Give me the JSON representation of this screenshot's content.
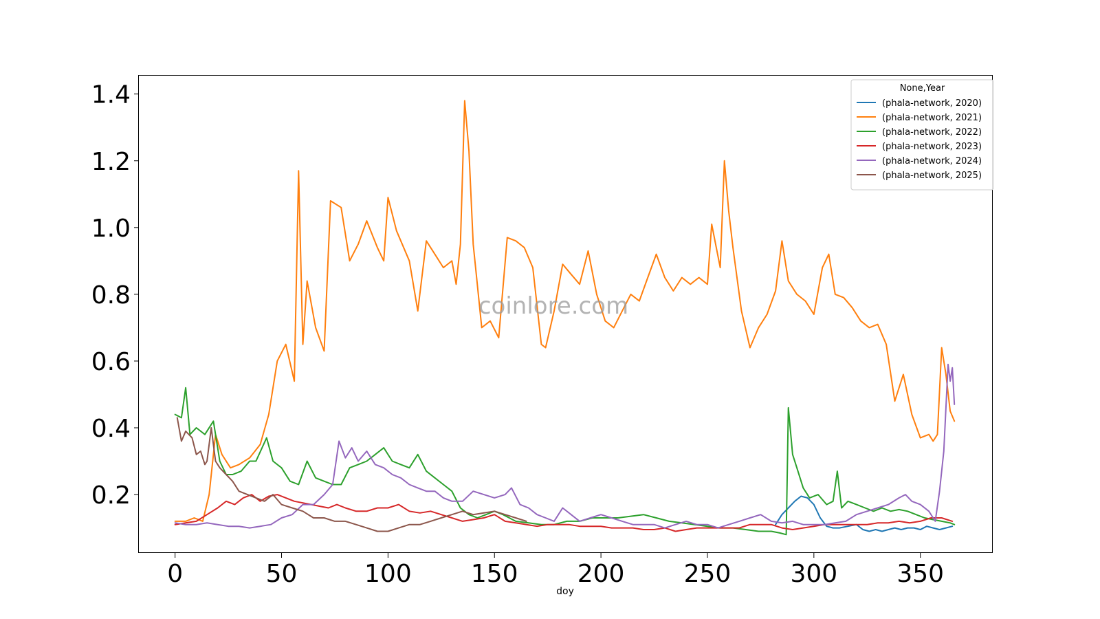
{
  "watermark": "coinlore.com",
  "chart_data": {
    "type": "line",
    "title": "",
    "xlabel": "doy",
    "ylabel": "",
    "xlim": [
      -17,
      384
    ],
    "ylim": [
      0.025,
      1.455
    ],
    "xticks": [
      0,
      50,
      100,
      150,
      200,
      250,
      300,
      350
    ],
    "yticks": [
      0.2,
      0.4,
      0.6,
      0.8,
      1.0,
      1.2,
      1.4
    ],
    "ytick_labels": [
      "0.2",
      "0.4",
      "0.6",
      "0.8",
      "1.0",
      "1.2",
      "1.4"
    ],
    "grid": false,
    "legend": {
      "title": "None,Year",
      "placement": "top-right"
    },
    "series": [
      {
        "name": "(phala-network, 2020)",
        "color": "#1f77b4",
        "x": [
          282,
          285,
          288,
          291,
          294,
          297,
          300,
          303,
          306,
          309,
          312,
          316,
          320,
          323,
          326,
          329,
          332,
          335,
          338,
          341,
          344,
          347,
          350,
          353,
          356,
          359,
          362,
          365
        ],
        "y": [
          0.11,
          0.14,
          0.16,
          0.18,
          0.195,
          0.19,
          0.17,
          0.13,
          0.105,
          0.1,
          0.1,
          0.105,
          0.11,
          0.095,
          0.09,
          0.095,
          0.09,
          0.095,
          0.1,
          0.095,
          0.1,
          0.1,
          0.095,
          0.105,
          0.1,
          0.095,
          0.1,
          0.105
        ]
      },
      {
        "name": "(phala-network, 2021)",
        "color": "#ff7f0e",
        "x": [
          0,
          5,
          9,
          13,
          16,
          19,
          22,
          26,
          30,
          35,
          40,
          44,
          48,
          52,
          56,
          58,
          60,
          62,
          66,
          70,
          73,
          78,
          82,
          86,
          90,
          95,
          98,
          100,
          104,
          110,
          114,
          118,
          122,
          126,
          130,
          132,
          134,
          136,
          138,
          140,
          144,
          148,
          152,
          156,
          160,
          164,
          168,
          172,
          174,
          178,
          182,
          186,
          190,
          194,
          198,
          202,
          206,
          210,
          214,
          218,
          222,
          226,
          230,
          234,
          238,
          242,
          246,
          250,
          252,
          256,
          258,
          260,
          262,
          266,
          270,
          274,
          278,
          282,
          285,
          288,
          292,
          296,
          300,
          304,
          307,
          310,
          314,
          318,
          322,
          326,
          330,
          334,
          338,
          342,
          346,
          350,
          354,
          356,
          358,
          360,
          362,
          364,
          366
        ],
        "y": [
          0.12,
          0.12,
          0.13,
          0.12,
          0.2,
          0.38,
          0.32,
          0.28,
          0.29,
          0.31,
          0.35,
          0.44,
          0.6,
          0.65,
          0.54,
          1.17,
          0.65,
          0.84,
          0.7,
          0.63,
          1.08,
          1.06,
          0.9,
          0.95,
          1.02,
          0.94,
          0.9,
          1.09,
          0.99,
          0.9,
          0.75,
          0.96,
          0.92,
          0.88,
          0.9,
          0.83,
          0.95,
          1.38,
          1.23,
          0.95,
          0.7,
          0.72,
          0.67,
          0.97,
          0.96,
          0.94,
          0.88,
          0.65,
          0.64,
          0.75,
          0.89,
          0.86,
          0.83,
          0.93,
          0.8,
          0.72,
          0.7,
          0.75,
          0.8,
          0.78,
          0.85,
          0.92,
          0.85,
          0.81,
          0.85,
          0.83,
          0.85,
          0.83,
          1.01,
          0.88,
          1.2,
          1.05,
          0.94,
          0.75,
          0.64,
          0.7,
          0.74,
          0.81,
          0.96,
          0.84,
          0.8,
          0.78,
          0.74,
          0.88,
          0.92,
          0.8,
          0.79,
          0.76,
          0.72,
          0.7,
          0.71,
          0.65,
          0.48,
          0.56,
          0.44,
          0.37,
          0.38,
          0.36,
          0.38,
          0.64,
          0.56,
          0.45,
          0.42
        ]
      },
      {
        "name": "(phala-network, 2022)",
        "color": "#2ca02c",
        "x": [
          0,
          3,
          5,
          7,
          10,
          14,
          18,
          21,
          24,
          27,
          31,
          35,
          38,
          43,
          46,
          50,
          54,
          58,
          62,
          66,
          70,
          74,
          78,
          82,
          86,
          90,
          94,
          98,
          102,
          106,
          110,
          114,
          118,
          122,
          126,
          130,
          134,
          138,
          142,
          146,
          150,
          154,
          160,
          166,
          172,
          178,
          184,
          190,
          196,
          202,
          208,
          214,
          220,
          226,
          232,
          238,
          244,
          250,
          256,
          262,
          268,
          274,
          280,
          284,
          287,
          288,
          290,
          292,
          295,
          298,
          302,
          306,
          309,
          311,
          313,
          316,
          320,
          324,
          328,
          332,
          336,
          340,
          344,
          348,
          352,
          356,
          360,
          364,
          366
        ],
        "y": [
          0.44,
          0.43,
          0.52,
          0.38,
          0.4,
          0.38,
          0.42,
          0.3,
          0.26,
          0.26,
          0.27,
          0.3,
          0.3,
          0.37,
          0.3,
          0.28,
          0.24,
          0.23,
          0.3,
          0.25,
          0.24,
          0.23,
          0.23,
          0.28,
          0.29,
          0.3,
          0.32,
          0.34,
          0.3,
          0.29,
          0.28,
          0.32,
          0.27,
          0.25,
          0.23,
          0.21,
          0.16,
          0.14,
          0.13,
          0.14,
          0.15,
          0.14,
          0.12,
          0.115,
          0.11,
          0.11,
          0.12,
          0.12,
          0.13,
          0.13,
          0.13,
          0.135,
          0.14,
          0.13,
          0.12,
          0.115,
          0.11,
          0.105,
          0.1,
          0.1,
          0.095,
          0.09,
          0.09,
          0.085,
          0.08,
          0.46,
          0.32,
          0.28,
          0.22,
          0.19,
          0.2,
          0.17,
          0.18,
          0.27,
          0.16,
          0.18,
          0.17,
          0.16,
          0.15,
          0.16,
          0.15,
          0.155,
          0.15,
          0.14,
          0.13,
          0.125,
          0.12,
          0.115,
          0.11
        ]
      },
      {
        "name": "(phala-network, 2023)",
        "color": "#d62728",
        "x": [
          0,
          5,
          10,
          15,
          20,
          24,
          28,
          32,
          36,
          40,
          44,
          48,
          52,
          56,
          60,
          64,
          68,
          72,
          76,
          80,
          85,
          90,
          95,
          100,
          105,
          110,
          115,
          120,
          125,
          130,
          135,
          140,
          145,
          150,
          155,
          160,
          165,
          170,
          175,
          180,
          185,
          190,
          195,
          200,
          205,
          210,
          215,
          220,
          225,
          230,
          235,
          240,
          245,
          250,
          255,
          260,
          265,
          270,
          275,
          280,
          285,
          290,
          295,
          300,
          305,
          310,
          315,
          320,
          325,
          330,
          335,
          340,
          345,
          350,
          355,
          360,
          365
        ],
        "y": [
          0.11,
          0.115,
          0.12,
          0.14,
          0.16,
          0.18,
          0.17,
          0.19,
          0.2,
          0.18,
          0.195,
          0.2,
          0.19,
          0.18,
          0.175,
          0.17,
          0.165,
          0.16,
          0.17,
          0.16,
          0.15,
          0.15,
          0.16,
          0.16,
          0.17,
          0.15,
          0.145,
          0.15,
          0.14,
          0.13,
          0.12,
          0.125,
          0.13,
          0.14,
          0.12,
          0.115,
          0.11,
          0.105,
          0.11,
          0.11,
          0.11,
          0.105,
          0.105,
          0.105,
          0.1,
          0.1,
          0.1,
          0.095,
          0.095,
          0.1,
          0.09,
          0.095,
          0.1,
          0.1,
          0.1,
          0.1,
          0.1,
          0.11,
          0.11,
          0.11,
          0.1,
          0.095,
          0.1,
          0.105,
          0.11,
          0.11,
          0.11,
          0.11,
          0.11,
          0.115,
          0.115,
          0.12,
          0.115,
          0.12,
          0.13,
          0.13,
          0.12
        ]
      },
      {
        "name": "(phala-network, 2024)",
        "color": "#9467bd",
        "x": [
          0,
          5,
          10,
          15,
          20,
          25,
          30,
          35,
          40,
          45,
          50,
          55,
          60,
          65,
          70,
          74,
          77,
          80,
          83,
          86,
          90,
          94,
          98,
          102,
          106,
          110,
          114,
          118,
          122,
          126,
          130,
          135,
          140,
          145,
          150,
          155,
          158,
          162,
          166,
          170,
          174,
          178,
          182,
          186,
          190,
          195,
          200,
          205,
          210,
          215,
          220,
          225,
          230,
          235,
          240,
          245,
          250,
          255,
          260,
          265,
          270,
          275,
          280,
          285,
          290,
          295,
          300,
          305,
          310,
          315,
          320,
          325,
          330,
          335,
          340,
          343,
          346,
          350,
          354,
          357,
          359,
          361,
          363,
          364,
          365,
          366
        ],
        "y": [
          0.115,
          0.11,
          0.11,
          0.115,
          0.11,
          0.105,
          0.105,
          0.1,
          0.105,
          0.11,
          0.13,
          0.14,
          0.17,
          0.17,
          0.2,
          0.23,
          0.36,
          0.31,
          0.34,
          0.3,
          0.33,
          0.29,
          0.28,
          0.26,
          0.25,
          0.23,
          0.22,
          0.21,
          0.21,
          0.19,
          0.18,
          0.18,
          0.21,
          0.2,
          0.19,
          0.2,
          0.22,
          0.17,
          0.16,
          0.14,
          0.13,
          0.12,
          0.16,
          0.14,
          0.12,
          0.13,
          0.14,
          0.13,
          0.12,
          0.11,
          0.11,
          0.11,
          0.1,
          0.11,
          0.12,
          0.11,
          0.11,
          0.1,
          0.11,
          0.12,
          0.13,
          0.14,
          0.12,
          0.115,
          0.12,
          0.11,
          0.11,
          0.11,
          0.115,
          0.12,
          0.14,
          0.15,
          0.16,
          0.17,
          0.19,
          0.2,
          0.18,
          0.17,
          0.15,
          0.12,
          0.21,
          0.33,
          0.59,
          0.54,
          0.58,
          0.47
        ]
      },
      {
        "name": "(phala-network, 2025)",
        "color": "#8c564b",
        "x": [
          1,
          3,
          5,
          8,
          10,
          12,
          14,
          15,
          17,
          19,
          21,
          24,
          27,
          30,
          34,
          38,
          42,
          46,
          50,
          55,
          60,
          65,
          70,
          75,
          80,
          85,
          90,
          95,
          100,
          105,
          110,
          115,
          120,
          125,
          130,
          135,
          140,
          145,
          150,
          155,
          160,
          165
        ],
        "y": [
          0.43,
          0.36,
          0.39,
          0.37,
          0.32,
          0.33,
          0.29,
          0.3,
          0.4,
          0.3,
          0.28,
          0.26,
          0.24,
          0.21,
          0.2,
          0.19,
          0.18,
          0.2,
          0.17,
          0.16,
          0.15,
          0.13,
          0.13,
          0.12,
          0.12,
          0.11,
          0.1,
          0.09,
          0.09,
          0.1,
          0.11,
          0.11,
          0.12,
          0.13,
          0.14,
          0.15,
          0.14,
          0.145,
          0.15,
          0.14,
          0.13,
          0.12
        ]
      }
    ]
  }
}
